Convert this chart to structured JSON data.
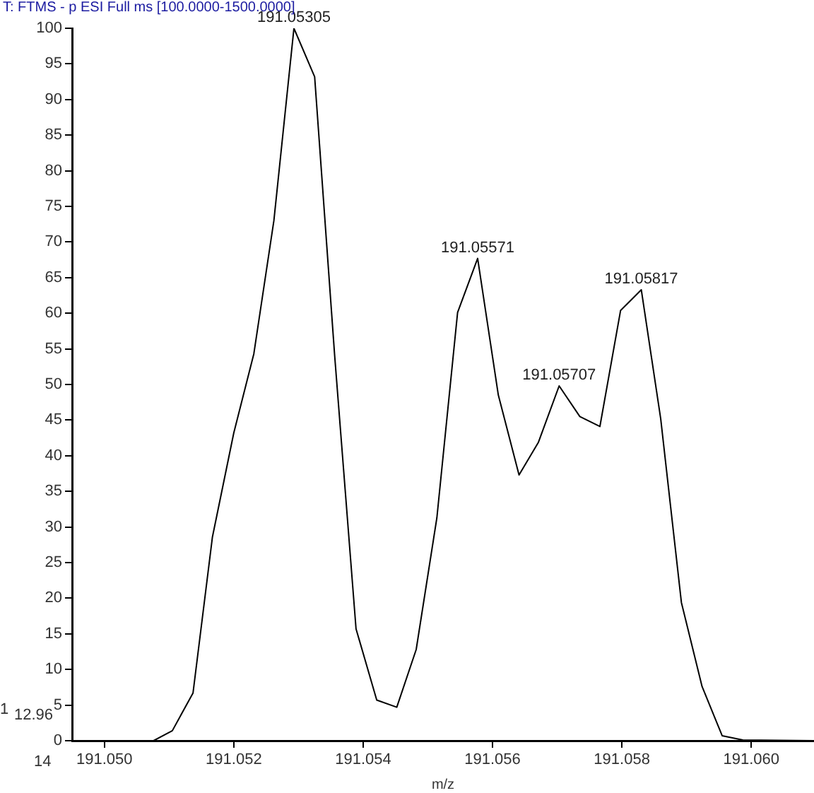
{
  "chart_data": {
    "type": "line",
    "title": "T: FTMS - p ESI Full ms [100.0000-1500.0000]",
    "xlabel": "m/z",
    "x": [
      191.0495,
      191.05076,
      191.05105,
      191.05137,
      191.05167,
      191.052,
      191.05231,
      191.05262,
      191.05293,
      191.05325,
      191.05356,
      191.05389,
      191.05421,
      191.05452,
      191.05482,
      191.05514,
      191.05546,
      191.05577,
      191.05609,
      191.05641,
      191.05671,
      191.05703,
      191.05735,
      191.05766,
      191.05798,
      191.0583,
      191.0586,
      191.05892,
      191.05924,
      191.05955,
      191.05987,
      191.06097
    ],
    "series": [
      {
        "color": "#000000",
        "values": [
          0,
          0,
          1.4,
          6.7,
          28.6,
          43.2,
          54.3,
          73,
          100,
          93.2,
          54,
          15.7,
          5.7,
          4.7,
          12.8,
          31.3,
          60.1,
          67.7,
          48.5,
          37.3,
          41.9,
          49.8,
          45.5,
          44.1,
          60.4,
          63.3,
          45.2,
          19.4,
          7.6,
          0.7,
          0.1,
          0
        ]
      }
    ],
    "xlim": [
      191.0495,
      191.06097
    ],
    "xticks": [
      {
        "value": 191.05,
        "label": "191.050"
      },
      {
        "value": 191.052,
        "label": "191.052"
      },
      {
        "value": 191.054,
        "label": "191.054"
      },
      {
        "value": 191.056,
        "label": "191.056"
      },
      {
        "value": 191.058,
        "label": "191.058"
      },
      {
        "value": 191.06,
        "label": "191.060"
      }
    ],
    "ylim": [
      0,
      100
    ],
    "yticks": [
      0,
      5,
      10,
      15,
      20,
      25,
      30,
      35,
      40,
      45,
      50,
      55,
      60,
      65,
      70,
      75,
      80,
      85,
      90,
      95,
      100
    ],
    "annotations": [
      {
        "text": "191.05305",
        "x": 191.05293,
        "y": 100
      },
      {
        "text": "191.05571",
        "x": 191.05577,
        "y": 67.7
      },
      {
        "text": "191.05707",
        "x": 191.05703,
        "y": 49.8
      },
      {
        "text": "191.05817",
        "x": 191.0583,
        "y": 63.3
      },
      "1",
      "12.96",
      "14"
    ],
    "grid": false,
    "legend": false,
    "marker": "none",
    "line_style": "solid"
  }
}
